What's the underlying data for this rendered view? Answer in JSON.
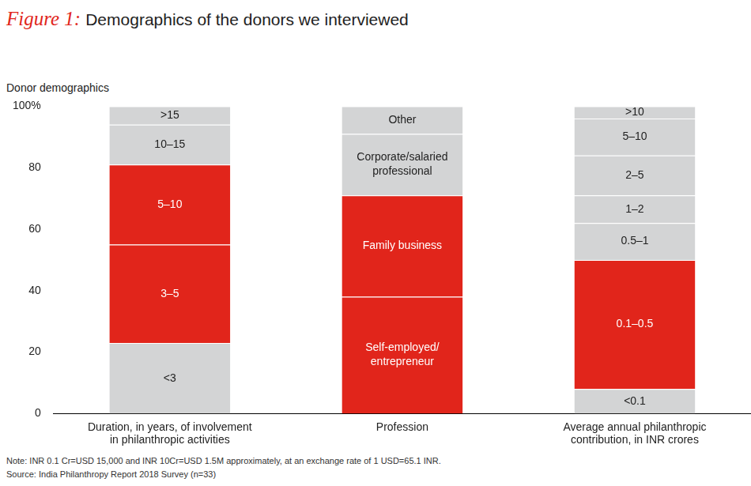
{
  "chart_data": {
    "type": "bar",
    "figure_label": "Figure 1:",
    "title": "Demographics of the donors we interviewed",
    "y_label": "Donor demographics",
    "note": "Note: INR  0.1 Cr=USD 15,000 and INR 10Cr=USD 1.5M approximately, at an exchange rate of 1 USD=65.1 INR.",
    "source": "Source: India Philanthropy Report 2018 Survey (n=33)",
    "categories": [
      [
        "Duration, in years, of involvement",
        "in philanthropic activities"
      ],
      "Profession",
      [
        "Average annual philanthropic",
        "contribution, in INR crores"
      ]
    ],
    "segments": [
      [
        {
          "label": "<3",
          "value": 23,
          "color": "#d3d4d5"
        },
        {
          "label": "3–5",
          "value": 32,
          "color": "#e1251b"
        },
        {
          "label": "5–10",
          "value": 26,
          "color": "#e1251b"
        },
        {
          "label": "10–15",
          "value": 13,
          "color": "#d3d4d5"
        },
        {
          "label": ">15",
          "value": 6,
          "color": "#d3d4d5"
        }
      ],
      [
        {
          "label": [
            "Self-employed/",
            "entrepreneur"
          ],
          "value": 38,
          "color": "#e1251b"
        },
        {
          "label": "Family business",
          "value": 33,
          "color": "#e1251b"
        },
        {
          "label": [
            "Corporate/salaried",
            "professional"
          ],
          "value": 20,
          "color": "#d3d4d5"
        },
        {
          "label": "Other",
          "value": 9,
          "color": "#d3d4d5"
        }
      ],
      [
        {
          "label": "<0.1",
          "value": 8,
          "color": "#d3d4d5"
        },
        {
          "label": "0.1–0.5",
          "value": 42,
          "color": "#e1251b"
        },
        {
          "label": "0.5–1",
          "value": 12,
          "color": "#d3d4d5"
        },
        {
          "label": "1–2",
          "value": 9,
          "color": "#d3d4d5"
        },
        {
          "label": "2–5",
          "value": 13,
          "color": "#d3d4d5"
        },
        {
          "label": "5–10",
          "value": 12,
          "color": "#d3d4d5"
        },
        {
          "label": ">10",
          "value": 4,
          "color": "#d3d4d5"
        }
      ]
    ],
    "stacked": true,
    "grid": false,
    "ylim": [
      0,
      100
    ],
    "yticks": [
      0,
      20,
      40,
      60,
      80,
      {
        "value": 100,
        "label": "100%"
      }
    ]
  }
}
